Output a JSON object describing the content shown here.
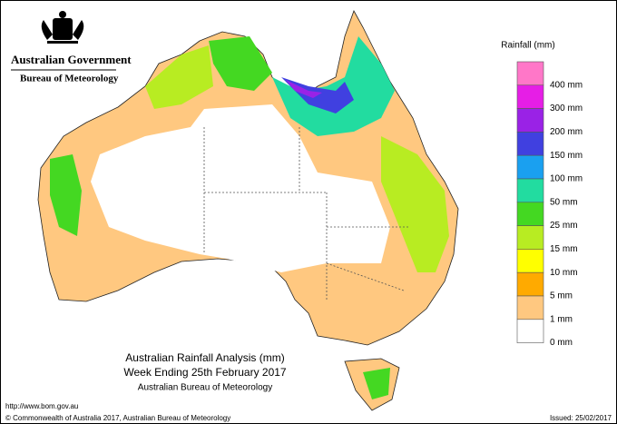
{
  "header": {
    "government": "Australian Government",
    "agency": "Bureau of Meteorology"
  },
  "legend": {
    "title": "Rainfall (mm)",
    "items": [
      {
        "label": "400 mm",
        "color": "#ff77c8"
      },
      {
        "label": "300 mm",
        "color": "#e61ee6"
      },
      {
        "label": "200 mm",
        "color": "#9a22e6"
      },
      {
        "label": "150 mm",
        "color": "#4040e0"
      },
      {
        "label": "100 mm",
        "color": "#1aa0f0"
      },
      {
        "label": "50 mm",
        "color": "#22dca0"
      },
      {
        "label": "25 mm",
        "color": "#44d822"
      },
      {
        "label": "15 mm",
        "color": "#b8ec22"
      },
      {
        "label": "10 mm",
        "color": "#ffff00"
      },
      {
        "label": "5 mm",
        "color": "#ffaa00"
      },
      {
        "label": "1 mm",
        "color": "#ffc880"
      },
      {
        "label": "0 mm",
        "color": "#ffffff"
      }
    ]
  },
  "caption": {
    "title": "Australian Rainfall Analysis (mm)",
    "subtitle": "Week Ending 25th February 2017",
    "source": "Australian Bureau of Meteorology"
  },
  "footer": {
    "url": "http://www.bom.gov.au",
    "copyright": "© Commonwealth of Australia 2017, Australian Bureau of Meteorology",
    "issued": "Issued: 25/02/2017"
  }
}
